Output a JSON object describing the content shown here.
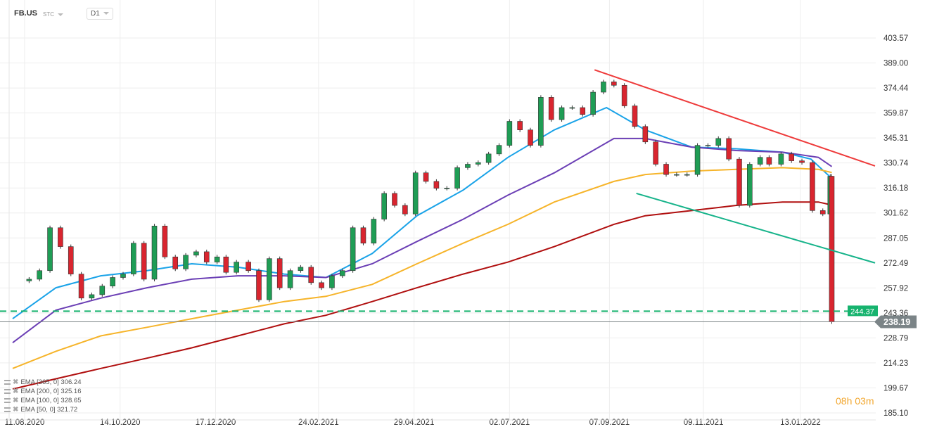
{
  "header": {
    "symbol": "FB.US",
    "type": "STC",
    "timeframe": "D1"
  },
  "legend": [
    {
      "label": "EMA [365,  0] 306.24"
    },
    {
      "label": "EMA [200,  0] 325.16"
    },
    {
      "label": "EMA [100,  0] 328.65"
    },
    {
      "label": "EMA [50,  0] 321.72"
    }
  ],
  "countdown": {
    "hours": "08",
    "h": "h",
    "minutes": "03",
    "m": "m"
  },
  "colors": {
    "up": "#1f9d55",
    "down": "#d9252f",
    "ema50": "#1aa3e8",
    "ema100": "#6b3fb5",
    "ema200": "#f6b42a",
    "ema365": "#b00f0f",
    "resistance": "#ee3b3b",
    "support": "#16b38a",
    "level": "#16b36e",
    "last": "#7b8487"
  },
  "chart_data": {
    "type": "candlestick",
    "title": "",
    "ylim": [
      185.1,
      403.57
    ],
    "xlim": [
      "2020-08-01",
      "2022-03-04"
    ],
    "grid": true,
    "y_ticks": [
      "403.57",
      "389.00",
      "374.44",
      "359.87",
      "345.31",
      "330.74",
      "316.18",
      "301.62",
      "287.05",
      "272.49",
      "257.92",
      "243.36",
      "228.79",
      "214.23",
      "199.67",
      "185.10"
    ],
    "x_ticks": [
      {
        "date": "2020-08-11",
        "label": "11.08.2020"
      },
      {
        "date": "2020-10-14",
        "label": "14.10.2020"
      },
      {
        "date": "2020-12-17",
        "label": "17.12.2020"
      },
      {
        "date": "2021-02-24",
        "label": "24.02.2021"
      },
      {
        "date": "2021-04-29",
        "label": "29.04.2021"
      },
      {
        "date": "2021-07-02",
        "label": "02.07.2021"
      },
      {
        "date": "2021-09-07",
        "label": "07.09.2021"
      },
      {
        "date": "2021-11-09",
        "label": "09.11.2021"
      },
      {
        "date": "2022-01-13",
        "label": "13.01.2022"
      }
    ],
    "closes": [
      [
        "2020-08-07",
        262
      ],
      [
        "2020-08-14",
        263
      ],
      [
        "2020-08-21",
        268
      ],
      [
        "2020-08-28",
        293
      ],
      [
        "2020-09-04",
        282
      ],
      [
        "2020-09-11",
        266
      ],
      [
        "2020-09-18",
        252
      ],
      [
        "2020-09-25",
        254
      ],
      [
        "2020-10-02",
        259
      ],
      [
        "2020-10-09",
        264
      ],
      [
        "2020-10-16",
        266
      ],
      [
        "2020-10-23",
        284
      ],
      [
        "2020-10-30",
        263
      ],
      [
        "2020-11-06",
        294
      ],
      [
        "2020-11-13",
        276
      ],
      [
        "2020-11-20",
        269
      ],
      [
        "2020-11-27",
        277
      ],
      [
        "2020-12-04",
        279
      ],
      [
        "2020-12-11",
        273
      ],
      [
        "2020-12-18",
        276
      ],
      [
        "2020-12-24",
        267
      ],
      [
        "2020-12-31",
        273
      ],
      [
        "2021-01-08",
        268
      ],
      [
        "2021-01-15",
        251
      ],
      [
        "2021-01-22",
        275
      ],
      [
        "2021-01-29",
        258
      ],
      [
        "2021-02-05",
        268
      ],
      [
        "2021-02-12",
        270
      ],
      [
        "2021-02-19",
        261
      ],
      [
        "2021-02-26",
        258
      ],
      [
        "2021-03-05",
        265
      ],
      [
        "2021-03-12",
        268
      ],
      [
        "2021-03-19",
        293
      ],
      [
        "2021-03-26",
        284
      ],
      [
        "2021-04-02",
        298
      ],
      [
        "2021-04-09",
        313
      ],
      [
        "2021-04-16",
        306
      ],
      [
        "2021-04-23",
        301
      ],
      [
        "2021-04-30",
        325
      ],
      [
        "2021-05-07",
        320
      ],
      [
        "2021-05-14",
        316
      ],
      [
        "2021-05-21",
        316
      ],
      [
        "2021-05-28",
        328
      ],
      [
        "2021-06-04",
        330
      ],
      [
        "2021-06-11",
        331
      ],
      [
        "2021-06-18",
        336
      ],
      [
        "2021-06-25",
        341
      ],
      [
        "2021-07-02",
        355
      ],
      [
        "2021-07-09",
        350
      ],
      [
        "2021-07-16",
        341
      ],
      [
        "2021-07-23",
        369
      ],
      [
        "2021-07-30",
        356
      ],
      [
        "2021-08-06",
        363
      ],
      [
        "2021-08-13",
        363
      ],
      [
        "2021-08-20",
        359
      ],
      [
        "2021-08-27",
        372
      ],
      [
        "2021-09-03",
        378
      ],
      [
        "2021-09-10",
        376
      ],
      [
        "2021-09-17",
        364
      ],
      [
        "2021-09-24",
        352
      ],
      [
        "2021-10-01",
        343
      ],
      [
        "2021-10-08",
        330
      ],
      [
        "2021-10-15",
        324
      ],
      [
        "2021-10-22",
        324
      ],
      [
        "2021-10-29",
        324
      ],
      [
        "2021-11-05",
        341
      ],
      [
        "2021-11-12",
        341
      ],
      [
        "2021-11-19",
        345
      ],
      [
        "2021-11-26",
        333
      ],
      [
        "2021-12-03",
        306
      ],
      [
        "2021-12-10",
        330
      ],
      [
        "2021-12-17",
        334
      ],
      [
        "2021-12-23",
        330
      ],
      [
        "2021-12-31",
        336
      ],
      [
        "2022-01-07",
        332
      ],
      [
        "2022-01-14",
        331
      ],
      [
        "2022-01-21",
        303
      ],
      [
        "2022-01-28",
        301
      ],
      [
        "2022-02-02",
        323
      ],
      [
        "2022-02-03",
        238.19
      ]
    ],
    "ema_series": [
      {
        "name": "EMA [50,  0]",
        "color_key": "ema50",
        "points": [
          [
            "2020-08-03",
            240
          ],
          [
            "2020-09-01",
            258
          ],
          [
            "2020-10-01",
            265
          ],
          [
            "2020-11-01",
            268
          ],
          [
            "2020-12-01",
            272
          ],
          [
            "2021-01-01",
            270
          ],
          [
            "2021-02-01",
            266
          ],
          [
            "2021-03-01",
            264
          ],
          [
            "2021-04-01",
            278
          ],
          [
            "2021-05-01",
            300
          ],
          [
            "2021-06-01",
            315
          ],
          [
            "2021-07-01",
            334
          ],
          [
            "2021-08-01",
            350
          ],
          [
            "2021-09-05",
            363
          ],
          [
            "2021-10-01",
            350
          ],
          [
            "2021-11-01",
            340
          ],
          [
            "2021-12-01",
            339
          ],
          [
            "2022-01-01",
            337
          ],
          [
            "2022-01-20",
            333
          ],
          [
            "2022-02-03",
            321.72
          ]
        ]
      },
      {
        "name": "EMA [100,  0]",
        "color_key": "ema100",
        "points": [
          [
            "2020-08-03",
            226
          ],
          [
            "2020-09-01",
            245
          ],
          [
            "2020-10-01",
            252
          ],
          [
            "2020-11-01",
            258
          ],
          [
            "2020-12-01",
            263
          ],
          [
            "2021-01-01",
            265
          ],
          [
            "2021-02-01",
            265
          ],
          [
            "2021-03-01",
            264
          ],
          [
            "2021-04-01",
            272
          ],
          [
            "2021-05-01",
            285
          ],
          [
            "2021-06-01",
            298
          ],
          [
            "2021-07-01",
            312
          ],
          [
            "2021-08-01",
            325
          ],
          [
            "2021-09-10",
            345
          ],
          [
            "2021-10-01",
            345
          ],
          [
            "2021-11-01",
            340
          ],
          [
            "2021-12-01",
            338
          ],
          [
            "2022-01-01",
            337
          ],
          [
            "2022-01-25",
            334
          ],
          [
            "2022-02-03",
            328.65
          ]
        ]
      },
      {
        "name": "EMA [200,  0]",
        "color_key": "ema200",
        "points": [
          [
            "2020-08-03",
            211
          ],
          [
            "2020-09-01",
            221
          ],
          [
            "2020-10-01",
            230
          ],
          [
            "2020-11-01",
            235
          ],
          [
            "2020-12-01",
            240
          ],
          [
            "2021-01-01",
            245
          ],
          [
            "2021-02-01",
            250
          ],
          [
            "2021-03-01",
            253
          ],
          [
            "2021-04-01",
            260
          ],
          [
            "2021-05-01",
            272
          ],
          [
            "2021-06-01",
            284
          ],
          [
            "2021-07-01",
            295
          ],
          [
            "2021-08-01",
            308
          ],
          [
            "2021-09-10",
            320
          ],
          [
            "2021-10-01",
            324
          ],
          [
            "2021-11-01",
            326
          ],
          [
            "2021-12-01",
            327
          ],
          [
            "2022-01-01",
            328
          ],
          [
            "2022-01-25",
            327
          ],
          [
            "2022-02-03",
            325.16
          ]
        ]
      },
      {
        "name": "EMA [365,  0]",
        "color_key": "ema365",
        "points": [
          [
            "2020-08-03",
            199
          ],
          [
            "2020-09-01",
            205
          ],
          [
            "2020-10-01",
            211
          ],
          [
            "2020-11-01",
            217
          ],
          [
            "2020-12-01",
            223
          ],
          [
            "2021-01-01",
            230
          ],
          [
            "2021-02-01",
            237
          ],
          [
            "2021-03-01",
            242
          ],
          [
            "2021-04-01",
            250
          ],
          [
            "2021-05-01",
            258
          ],
          [
            "2021-06-01",
            266
          ],
          [
            "2021-07-01",
            273
          ],
          [
            "2021-08-01",
            282
          ],
          [
            "2021-09-10",
            295
          ],
          [
            "2021-10-01",
            300
          ],
          [
            "2021-11-01",
            303
          ],
          [
            "2021-12-01",
            306
          ],
          [
            "2022-01-01",
            308
          ],
          [
            "2022-01-25",
            308
          ],
          [
            "2022-02-03",
            306.24
          ]
        ]
      }
    ],
    "trendlines": [
      {
        "color_key": "resistance",
        "from": [
          "2021-08-28",
          385
        ],
        "to": [
          "2022-03-04",
          329
        ]
      },
      {
        "color_key": "support",
        "from": [
          "2021-09-25",
          313
        ],
        "to": [
          "2022-03-04",
          272.5
        ]
      }
    ],
    "levels": [
      {
        "value": 244.37,
        "label": "244.37",
        "style": "dashed",
        "color_key": "level"
      },
      {
        "value": 238.19,
        "label": "238.19",
        "style": "solid",
        "color_key": "last"
      }
    ]
  }
}
